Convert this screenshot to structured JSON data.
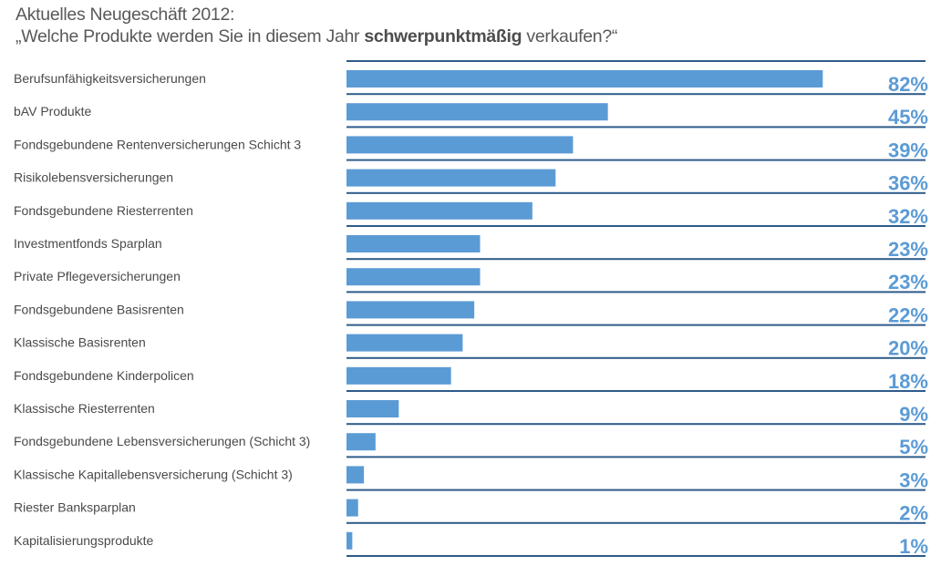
{
  "header": {
    "line1": "Aktuelles Neugeschäft 2012:",
    "line2_pre": "„Welche Produkte werden Sie in diesem Jahr ",
    "line2_bold": "schwerpunktmäßig",
    "line2_post": " verkaufen?“"
  },
  "chart_data": {
    "type": "bar",
    "orientation": "horizontal",
    "title": "Aktuelles Neugeschäft 2012: „Welche Produkte werden Sie in diesem Jahr schwerpunktmäßig verkaufen?“",
    "xlabel": "",
    "ylabel": "",
    "unit": "%",
    "xlim": [
      0,
      100
    ],
    "grid": false,
    "legend": "none",
    "colors": {
      "bar": "#5b9bd5",
      "separator": "#2e5c8a",
      "value_label": "#5b9bd5",
      "category_label": "#4a4a4a"
    },
    "categories": [
      "Berufsunfähigkeitsversicherungen",
      "bAV Produkte",
      "Fondsgebundene Rentenversicherungen Schicht 3",
      "Risikolebensversicherungen",
      "Fondsgebundene Riesterrenten",
      "Investmentfonds Sparplan",
      "Private Pflegeversicherungen",
      "Fondsgebundene Basisrenten",
      "Klassische Basisrenten",
      "Fondsgebundene Kinderpolicen",
      "Klassische Riesterrenten",
      "Fondsgebundene Lebensversicherungen (Schicht 3)",
      "Klassische Kapitallebensversicherung (Schicht 3)",
      "Riester Banksparplan",
      "Kapitalisierungsprodukte"
    ],
    "values": [
      82,
      45,
      39,
      36,
      32,
      23,
      23,
      22,
      20,
      18,
      9,
      5,
      3,
      2,
      1
    ],
    "value_labels": [
      "82%",
      "45%",
      "39%",
      "36%",
      "32%",
      "23%",
      "23%",
      "22%",
      "20%",
      "18%",
      "9%",
      "5%",
      "3%",
      "2%",
      "1%"
    ]
  }
}
